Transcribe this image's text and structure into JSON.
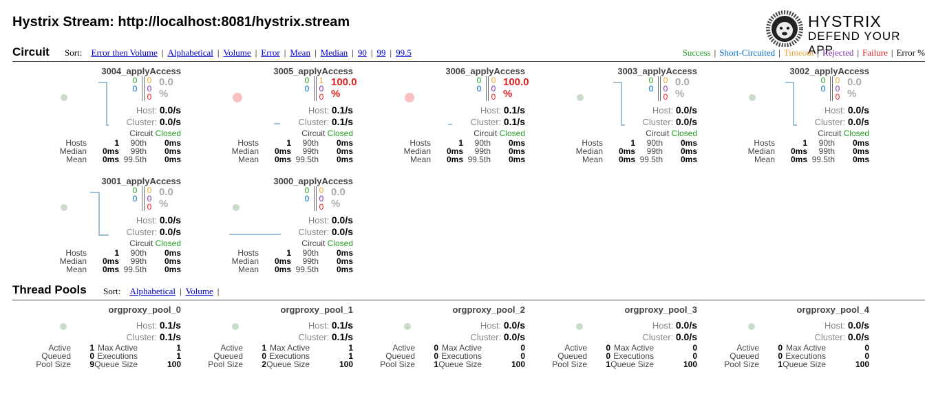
{
  "page": {
    "title": "Hystrix Stream: http://localhost:8081/hystrix.stream",
    "logo_line1": "HYSTRIX",
    "logo_line2": "DEFEND YOUR APP"
  },
  "circuit_section": {
    "heading": "Circuit",
    "sort_label": "Sort:",
    "sort_links": [
      "Error then Volume",
      "Alphabetical",
      "Volume",
      "Error",
      "Mean",
      "Median",
      "90",
      "99",
      "99.5"
    ],
    "legend": [
      {
        "label": "Success",
        "color": "#219b21"
      },
      {
        "label": "Short-Circuited",
        "color": "#0066cc"
      },
      {
        "label": "Timeout",
        "color": "#e8a12e"
      },
      {
        "label": "Rejected",
        "color": "#7d2ea3"
      },
      {
        "label": "Failure",
        "color": "#e02020"
      },
      {
        "label": "Error %",
        "color": "#000000"
      }
    ]
  },
  "circuits": [
    {
      "name": "3004_applyAccess",
      "success": "0",
      "short": "0",
      "timeout": "0",
      "rejected": "0",
      "failure": "0",
      "pct": "0.0 %",
      "pct_red": false,
      "host": "0.0/s",
      "cluster": "0.0/s",
      "circle_red": false,
      "spark": "tall",
      "hosts": "1",
      "median": "0ms",
      "mean": "0ms",
      "p90": "0ms",
      "p99": "0ms",
      "p995": "0ms"
    },
    {
      "name": "3005_applyAccess",
      "success": "0",
      "short": "0",
      "timeout": "1",
      "rejected": "0",
      "failure": "0",
      "pct": "100.0 %",
      "pct_red": true,
      "host": "0.1/s",
      "cluster": "0.1/s",
      "circle_red": true,
      "spark": "flat",
      "hosts": "1",
      "median": "0ms",
      "mean": "0ms",
      "p90": "0ms",
      "p99": "0ms",
      "p995": "0ms"
    },
    {
      "name": "3006_applyAccess",
      "success": "0",
      "short": "0",
      "timeout": "0",
      "rejected": "0",
      "failure": "0",
      "pct": "100.0 %",
      "pct_red": true,
      "host": "0.1/s",
      "cluster": "0.1/s",
      "circle_red": true,
      "spark": "flat",
      "hosts": "1",
      "median": "0ms",
      "mean": "0ms",
      "p90": "0ms",
      "p99": "0ms",
      "p995": "0ms"
    },
    {
      "name": "3003_applyAccess",
      "success": "0",
      "short": "0",
      "timeout": "0",
      "rejected": "0",
      "failure": "0",
      "pct": "0.0 %",
      "pct_red": false,
      "host": "0.0/s",
      "cluster": "0.0/s",
      "circle_red": false,
      "spark": "tall",
      "hosts": "1",
      "median": "0ms",
      "mean": "0ms",
      "p90": "0ms",
      "p99": "0ms",
      "p995": "0ms"
    },
    {
      "name": "3002_applyAccess",
      "success": "0",
      "short": "0",
      "timeout": "0",
      "rejected": "0",
      "failure": "0",
      "pct": "0.0 %",
      "pct_red": false,
      "host": "0.0/s",
      "cluster": "0.0/s",
      "circle_red": false,
      "spark": "tall",
      "hosts": "1",
      "median": "0ms",
      "mean": "0ms",
      "p90": "0ms",
      "p99": "0ms",
      "p995": "0ms"
    },
    {
      "name": "3001_applyAccess",
      "success": "0",
      "short": "0",
      "timeout": "0",
      "rejected": "0",
      "failure": "0",
      "pct": "0.0 %",
      "pct_red": false,
      "host": "0.0/s",
      "cluster": "0.0/s",
      "circle_red": false,
      "spark": "tall",
      "hosts": "1",
      "median": "0ms",
      "mean": "0ms",
      "p90": "0ms",
      "p99": "0ms",
      "p995": "0ms"
    },
    {
      "name": "3000_applyAccess",
      "success": "0",
      "short": "0",
      "timeout": "0",
      "rejected": "0",
      "failure": "0",
      "pct": "0.0 %",
      "pct_red": false,
      "host": "0.0/s",
      "cluster": "0.0/s",
      "circle_red": false,
      "spark": "line",
      "hosts": "1",
      "median": "0ms",
      "mean": "0ms",
      "p90": "0ms",
      "p99": "0ms",
      "p995": "0ms"
    }
  ],
  "circuit_labels": {
    "host": "Host:",
    "cluster": "Cluster:",
    "circuit": "Circuit",
    "closed": "Closed",
    "hosts": "Hosts",
    "median": "Median",
    "mean": "Mean",
    "p90": "90th",
    "p99": "99th",
    "p995": "99.5th"
  },
  "pool_section": {
    "heading": "Thread Pools",
    "sort_label": "Sort:",
    "sort_links": [
      "Alphabetical",
      "Volume"
    ]
  },
  "pool_labels": {
    "host": "Host:",
    "cluster": "Cluster:",
    "active": "Active",
    "queued": "Queued",
    "pool_size": "Pool Size",
    "max_active": "Max Active",
    "executions": "Executions",
    "queue_size": "Queue Size"
  },
  "pools": [
    {
      "name": "orgproxy_pool_0",
      "host": "0.1/s",
      "cluster": "0.1/s",
      "active": "1",
      "queued": "0",
      "pool_size": "9",
      "max_active": "1",
      "executions": "1",
      "queue_size": "100"
    },
    {
      "name": "orgproxy_pool_1",
      "host": "0.1/s",
      "cluster": "0.1/s",
      "active": "1",
      "queued": "0",
      "pool_size": "2",
      "max_active": "1",
      "executions": "1",
      "queue_size": "100"
    },
    {
      "name": "orgproxy_pool_2",
      "host": "0.0/s",
      "cluster": "0.0/s",
      "active": "0",
      "queued": "0",
      "pool_size": "1",
      "max_active": "0",
      "executions": "0",
      "queue_size": "100"
    },
    {
      "name": "orgproxy_pool_3",
      "host": "0.0/s",
      "cluster": "0.0/s",
      "active": "0",
      "queued": "0",
      "pool_size": "1",
      "max_active": "0",
      "executions": "0",
      "queue_size": "100"
    },
    {
      "name": "orgproxy_pool_4",
      "host": "0.0/s",
      "cluster": "0.0/s",
      "active": "0",
      "queued": "0",
      "pool_size": "1",
      "max_active": "0",
      "executions": "0",
      "queue_size": "100"
    }
  ]
}
